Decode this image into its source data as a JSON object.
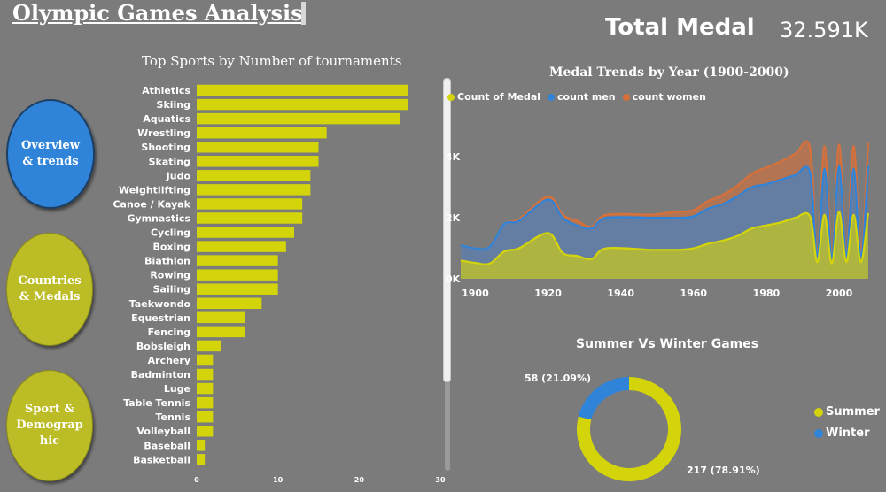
{
  "header": {
    "title": "Olympic Games Analysis",
    "total_label": "Total Medal",
    "total_value": "32.591K"
  },
  "nav": {
    "overview": "Overview\n& trends",
    "countries": "Countries\n& Medals",
    "sport": "Sport &\nDemograp\nhic"
  },
  "colors": {
    "background": "#7b7b7b",
    "bar": "#d4d40a",
    "medal": "#d4d40a",
    "men": "#2f84d9",
    "women": "#d8703a",
    "summer": "#d4d40a",
    "winter": "#2f84d9"
  },
  "chart_data": [
    {
      "type": "bar",
      "orientation": "horizontal",
      "title": "Top Sports by Number of tournaments",
      "categories": [
        "Athletics",
        "Skiing",
        "Aquatics",
        "Wrestling",
        "Shooting",
        "Skating",
        "Judo",
        "Weightlifting",
        "Canoe / Kayak",
        "Gymnastics",
        "Cycling",
        "Boxing",
        "Biathlon",
        "Rowing",
        "Sailing",
        "Taekwondo",
        "Equestrian",
        "Fencing",
        "Bobsleigh",
        "Archery",
        "Badminton",
        "Luge",
        "Table Tennis",
        "Tennis",
        "Volleyball",
        "Baseball",
        "Basketball"
      ],
      "values": [
        26,
        26,
        25,
        16,
        15,
        15,
        14,
        14,
        13,
        13,
        12,
        11,
        10,
        10,
        10,
        8,
        6,
        6,
        3,
        2,
        2,
        2,
        2,
        2,
        2,
        1,
        1
      ],
      "xlim": [
        0,
        30
      ],
      "xticks": [
        "0",
        "10",
        "20",
        "30"
      ]
    },
    {
      "type": "area",
      "title": "Medal Trends by Year (1900-2000)",
      "legend": [
        "Count of Medal",
        "count men",
        "count women"
      ],
      "legend_position": "top-left",
      "x": [
        1896,
        1900,
        1904,
        1908,
        1912,
        1920,
        1924,
        1928,
        1932,
        1936,
        1948,
        1952,
        1956,
        1960,
        1964,
        1968,
        1972,
        1976,
        1980,
        1984,
        1988,
        1992,
        1994,
        1996,
        1998,
        2000,
        2002,
        2004,
        2006,
        2008
      ],
      "series": [
        {
          "name": "Count of Medal",
          "values": [
            600,
            520,
            500,
            900,
            1000,
            1500,
            850,
            750,
            650,
            1000,
            950,
            950,
            950,
            1000,
            1150,
            1250,
            1400,
            1650,
            1750,
            1850,
            2000,
            2050,
            550,
            2100,
            500,
            2200,
            550,
            2100,
            550,
            2150
          ]
        },
        {
          "name": "count men",
          "values": [
            1100,
            1000,
            1050,
            1800,
            1900,
            2600,
            2000,
            1750,
            1650,
            2000,
            2000,
            2000,
            2000,
            2050,
            2300,
            2450,
            2700,
            3000,
            3100,
            3250,
            3400,
            3500,
            750,
            3600,
            700,
            3700,
            750,
            3600,
            750,
            3700
          ]
        },
        {
          "name": "count women",
          "values": [
            1100,
            1000,
            1050,
            1800,
            1950,
            2700,
            2100,
            1900,
            1700,
            2100,
            2100,
            2150,
            2200,
            2250,
            2550,
            2750,
            3050,
            3450,
            3650,
            3850,
            4100,
            4300,
            850,
            4350,
            850,
            4400,
            850,
            4350,
            900,
            4450
          ]
        }
      ],
      "ylim": [
        0,
        4500
      ],
      "yticks": [
        "0K",
        "2K",
        "4K"
      ],
      "xticks": [
        "1900",
        "1920",
        "1940",
        "1960",
        "1980",
        "2000"
      ]
    },
    {
      "type": "pie",
      "title": "Summer Vs Winter Games",
      "slices": [
        {
          "name": "Summer",
          "value": 217,
          "label": "217 (78.91%)"
        },
        {
          "name": "Winter",
          "value": 58,
          "label": "58 (21.09%)"
        }
      ],
      "legend": [
        "Summer",
        "Winter"
      ],
      "legend_position": "right"
    }
  ]
}
